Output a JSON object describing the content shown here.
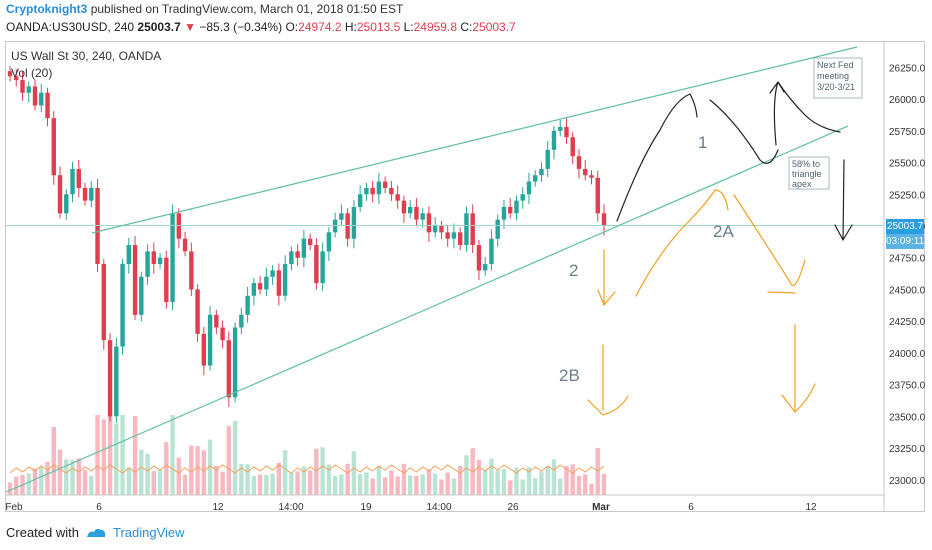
{
  "header": {
    "author": "Cryptoknight3",
    "published_text": "published on TradingView.com, March 01, 2018 01:50 EST",
    "symbol": "OANDA:US30USD, 240",
    "last": "25003.7",
    "change": "−85.3 (−0.34%)",
    "o_label": "O:",
    "o_value": "24974.2",
    "h_label": "H:",
    "h_value": "25013.5",
    "l_label": "L:",
    "l_value": "24959.8",
    "c_label": "C:",
    "c_value": "25003.7"
  },
  "legend": {
    "title": "US Wall St 30, 240, OANDA",
    "indicator": "Vol (20)"
  },
  "price_tag": {
    "value": "25003.7",
    "timer": "03:09:11"
  },
  "footer": {
    "created_with": "Created with",
    "brand": "TradingView"
  },
  "annotations": {
    "one": "1",
    "two": "2",
    "two_a": "2A",
    "two_b": "2B",
    "fed_note": [
      "Next Fed",
      "meeting",
      "3/20-3/21"
    ],
    "apex_note": [
      "58% to",
      "triangle",
      "apex"
    ]
  },
  "colors": {
    "up": "#26a69a",
    "down": "#e03e4e",
    "trendline": "#5fbf9f",
    "vol_up": "#b9e3d3",
    "vol_down": "#f7b8c0",
    "ma": "#f5a15b",
    "orange_sketch": "#f0a020",
    "black_sketch": "#222222",
    "accent": "#2a9ee0"
  },
  "chart_data": {
    "type": "candlestick",
    "y_ticks": [
      23000,
      23250,
      23500,
      23750,
      24000,
      24250,
      24500,
      24750,
      25000,
      25250,
      25500,
      25750,
      26000,
      26250
    ],
    "y_tick_labels": [
      "23000.0",
      "23250.0",
      "23500.0",
      "23750.0",
      "24000.0",
      "24250.0",
      "24500.0",
      "24750.0",
      "25000.0",
      "25250.0",
      "25500.0",
      "25750.0",
      "26000.0",
      "26250.0"
    ],
    "ylim": [
      22880,
      26450
    ],
    "x_tick_labels": [
      "Feb",
      "6",
      "12",
      "14:00",
      "19",
      "14:00",
      "26",
      "Mar",
      "6",
      "12"
    ],
    "current_price": 25003.7,
    "series": [
      {
        "name": "US Wall St 30",
        "close_path": [
          26180,
          26150,
          26050,
          26100,
          25950,
          26050,
          25850,
          25400,
          25100,
          25250,
          25450,
          25300,
          25200,
          25300,
          24700,
          24100,
          23500,
          24050,
          24700,
          24850,
          24300,
          24600,
          24800,
          24700,
          24750,
          24400,
          25100,
          24900,
          24800,
          24500,
          24150,
          23900,
          24300,
          24200,
          24100,
          23650,
          24200,
          24300,
          24450,
          24550,
          24500,
          24600,
          24650,
          24450,
          24700,
          24800,
          24750,
          24900,
          24850,
          24550,
          24800,
          24950,
          25050,
          25100,
          24900,
          25150,
          25250,
          25300,
          25250,
          25350,
          25300,
          25250,
          25200,
          25100,
          25150,
          25050,
          25100,
          24950,
          25000,
          24950,
          24900,
          24950,
          24850,
          25100,
          24850,
          24650,
          24700,
          24900,
          25050,
          25150,
          25100,
          25200,
          25250,
          25350,
          25400,
          25450,
          25600,
          25750,
          25780,
          25700,
          25550,
          25450,
          25400,
          25380,
          25100,
          25000
        ]
      }
    ]
  }
}
